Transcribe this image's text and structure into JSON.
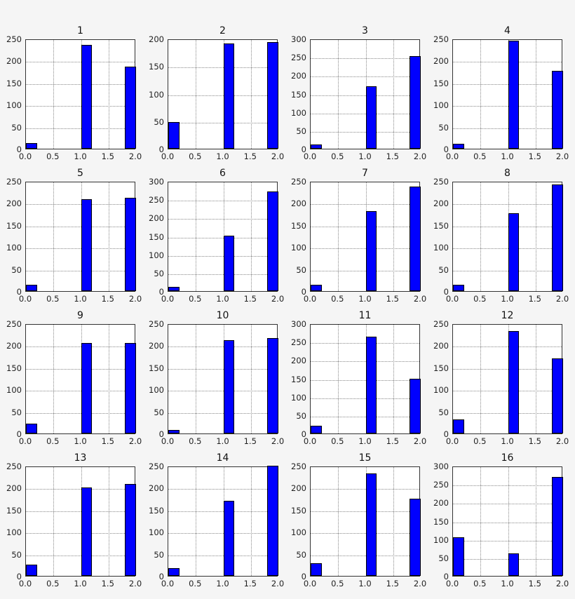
{
  "chart_data": {
    "type": "bar",
    "layout": {
      "rows": 4,
      "cols": 4,
      "grid": true
    },
    "colors": {
      "bar_fill": "#0000ff",
      "bar_edge": "#000000",
      "background": "#f5f5f5",
      "axes_bg": "#ffffff"
    },
    "x_ticks": [
      "0.0",
      "0.5",
      "1.0",
      "1.5",
      "2.0"
    ],
    "xlim": [
      0,
      2
    ],
    "bins": [
      [
        0.0,
        0.2
      ],
      [
        1.0,
        1.2
      ],
      [
        1.8,
        2.0
      ]
    ],
    "subplots": [
      {
        "title": "1",
        "ylim": [
          0,
          250
        ],
        "y_ticks": [
          "0",
          "50",
          "100",
          "150",
          "200",
          "250"
        ],
        "values": [
          12,
          235,
          187
        ]
      },
      {
        "title": "2",
        "ylim": [
          0,
          200
        ],
        "y_ticks": [
          "0",
          "50",
          "100",
          "150",
          "200"
        ],
        "values": [
          48,
          191,
          194
        ]
      },
      {
        "title": "3",
        "ylim": [
          0,
          300
        ],
        "y_ticks": [
          "0",
          "50",
          "100",
          "150",
          "200",
          "250",
          "300"
        ],
        "values": [
          12,
          171,
          253
        ]
      },
      {
        "title": "4",
        "ylim": [
          0,
          250
        ],
        "y_ticks": [
          "0",
          "50",
          "100",
          "150",
          "200",
          "250"
        ],
        "values": [
          11,
          246,
          176
        ]
      },
      {
        "title": "5",
        "ylim": [
          0,
          250
        ],
        "y_ticks": [
          "0",
          "50",
          "100",
          "150",
          "200",
          "250"
        ],
        "values": [
          15,
          208,
          212
        ]
      },
      {
        "title": "6",
        "ylim": [
          0,
          300
        ],
        "y_ticks": [
          "0",
          "50",
          "100",
          "150",
          "200",
          "250",
          "300"
        ],
        "values": [
          11,
          151,
          272
        ]
      },
      {
        "title": "7",
        "ylim": [
          0,
          250
        ],
        "y_ticks": [
          "0",
          "50",
          "100",
          "150",
          "200",
          "250"
        ],
        "values": [
          14,
          181,
          238
        ]
      },
      {
        "title": "8",
        "ylim": [
          0,
          250
        ],
        "y_ticks": [
          "0",
          "50",
          "100",
          "150",
          "200",
          "250"
        ],
        "values": [
          15,
          177,
          242
        ]
      },
      {
        "title": "9",
        "ylim": [
          0,
          250
        ],
        "y_ticks": [
          "0",
          "50",
          "100",
          "150",
          "200",
          "250"
        ],
        "values": [
          22,
          206,
          206
        ]
      },
      {
        "title": "10",
        "ylim": [
          0,
          250
        ],
        "y_ticks": [
          "0",
          "50",
          "100",
          "150",
          "200",
          "250"
        ],
        "values": [
          8,
          212,
          216
        ]
      },
      {
        "title": "11",
        "ylim": [
          0,
          300
        ],
        "y_ticks": [
          "0",
          "50",
          "100",
          "150",
          "200",
          "250",
          "300"
        ],
        "values": [
          22,
          264,
          150
        ]
      },
      {
        "title": "12",
        "ylim": [
          0,
          250
        ],
        "y_ticks": [
          "0",
          "50",
          "100",
          "150",
          "200",
          "250"
        ],
        "values": [
          32,
          233,
          171
        ]
      },
      {
        "title": "13",
        "ylim": [
          0,
          250
        ],
        "y_ticks": [
          "0",
          "50",
          "100",
          "150",
          "200",
          "250"
        ],
        "values": [
          25,
          201,
          209
        ]
      },
      {
        "title": "14",
        "ylim": [
          0,
          250
        ],
        "y_ticks": [
          "0",
          "50",
          "100",
          "150",
          "200",
          "250"
        ],
        "values": [
          17,
          171,
          250
        ]
      },
      {
        "title": "15",
        "ylim": [
          0,
          250
        ],
        "y_ticks": [
          "0",
          "50",
          "100",
          "150",
          "200",
          "250"
        ],
        "values": [
          28,
          233,
          175
        ]
      },
      {
        "title": "16",
        "ylim": [
          0,
          300
        ],
        "y_ticks": [
          "0",
          "50",
          "100",
          "150",
          "200",
          "250",
          "300"
        ],
        "values": [
          105,
          62,
          270
        ]
      }
    ]
  }
}
